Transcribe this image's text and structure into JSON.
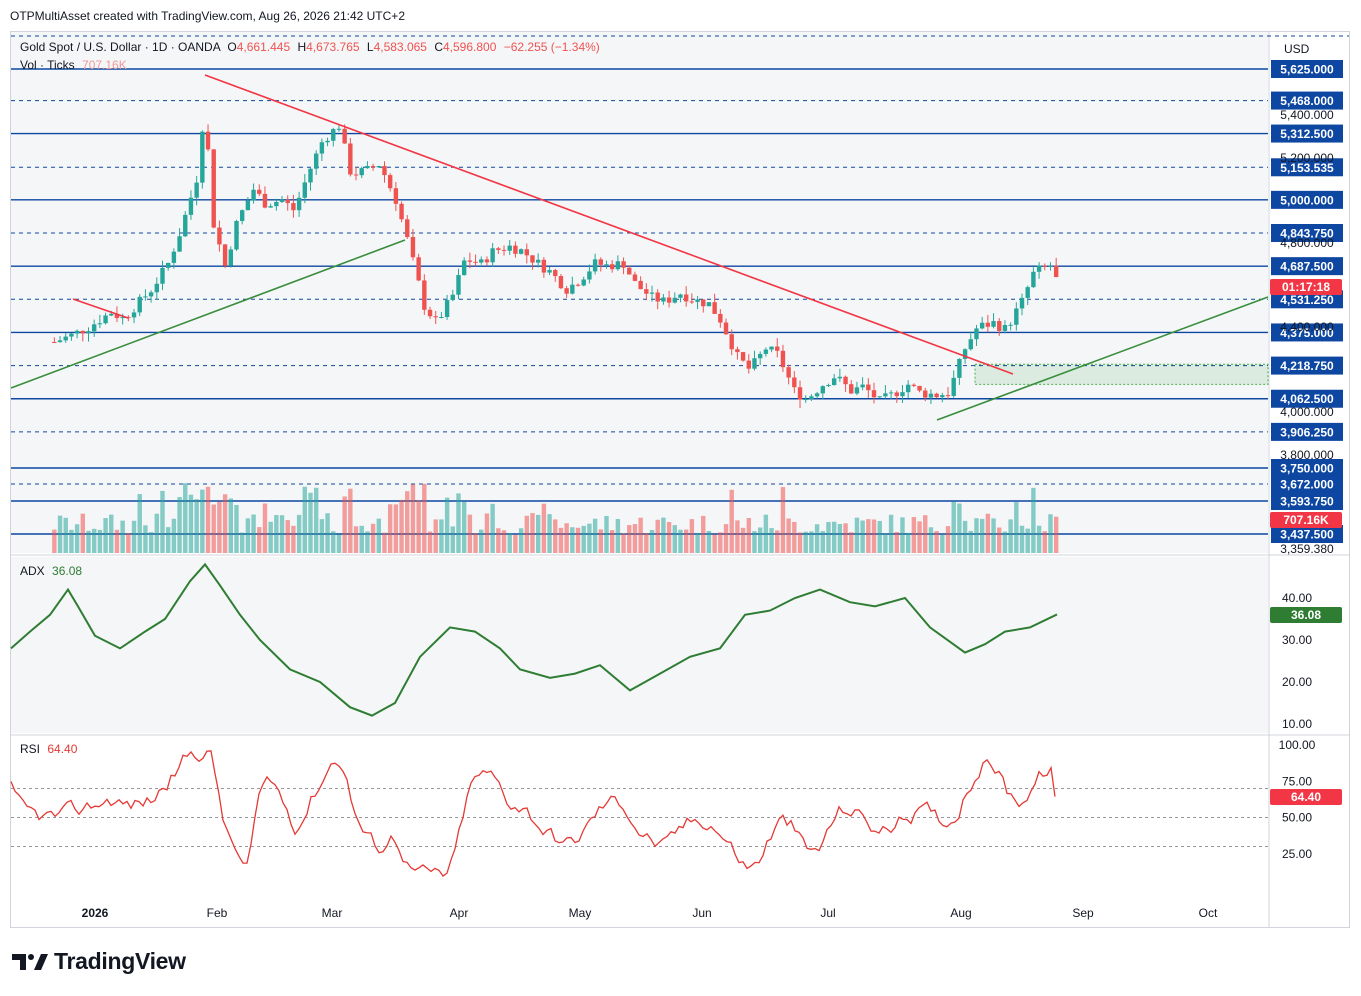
{
  "header": {
    "text": "OTPMultiAsset created with TradingView.com, Aug 26, 2026 21:42 UTC+2"
  },
  "price_pane": {
    "symbol": "Gold Spot / U.S. Dollar · 1D · OANDA",
    "o_label": "O",
    "o_value": "4,661.445",
    "h_label": "H",
    "h_value": "4,673.765",
    "l_label": "L",
    "l_value": "4,583.065",
    "c_label": "C",
    "c_value": "4,596.800",
    "change": "−62.255 (−1.34%)",
    "vol_label": "Vol · Ticks",
    "vol_value": "707.16K",
    "currency": "USD",
    "price_tag": "01:17:18",
    "vol_tag": "707.16K"
  },
  "adx_pane": {
    "label": "ADX",
    "value": "36.08"
  },
  "rsi_pane": {
    "label": "RSI",
    "value": "64.40"
  },
  "branding": {
    "logo_text": "TradingView"
  },
  "colors": {
    "up": "#26a69a",
    "down": "#ef5350",
    "adx": "#2e7d32",
    "rsi": "#e53935",
    "level": "#0d47a1",
    "trend_down": "#f23645",
    "trend_up": "#388e3c"
  },
  "chart_data": [
    {
      "type": "candlestick",
      "title": "Gold Spot / U.S. Dollar · 1D · OANDA",
      "x_ticks": [
        "2026",
        "Feb",
        "Mar",
        "Apr",
        "May",
        "Jun",
        "Jul",
        "Aug",
        "Sep",
        "Oct"
      ],
      "y_ticks": [
        "5,400.000",
        "5,200.000",
        "4,800.000",
        "4,400.000",
        "4,000.000",
        "3,800.000",
        "3,359.380"
      ],
      "horizontal_levels": [
        {
          "label": "5,625.000",
          "style": "solid"
        },
        {
          "label": "5,468.000",
          "style": "dashed"
        },
        {
          "label": "5,312.500",
          "style": "solid"
        },
        {
          "label": "5,153.535",
          "style": "dashed"
        },
        {
          "label": "5,000.000",
          "style": "solid"
        },
        {
          "label": "4,843.750",
          "style": "dashed"
        },
        {
          "label": "4,687.500",
          "style": "solid"
        },
        {
          "label": "4,531.250",
          "style": "dashed"
        },
        {
          "label": "4,375.000",
          "style": "solid"
        },
        {
          "label": "4,218.750",
          "style": "dashed"
        },
        {
          "label": "4,062.500",
          "style": "solid"
        },
        {
          "label": "3,906.250",
          "style": "dashed"
        },
        {
          "label": "3,750.000",
          "style": "solid"
        },
        {
          "label": "3,672.000",
          "style": "dashed"
        },
        {
          "label": "3,593.750",
          "style": "solid"
        },
        {
          "label": "3,437.500",
          "style": "solid"
        }
      ],
      "ylim": [
        3359.38,
        5700
      ],
      "close_series": [
        {
          "date": "2025-12-22",
          "close": 4330
        },
        {
          "date": "2025-12-26",
          "close": 4360
        },
        {
          "date": "2025-12-30",
          "close": 4395
        },
        {
          "date": "2026-01-05",
          "close": 4470
        },
        {
          "date": "2026-01-08",
          "close": 4440
        },
        {
          "date": "2026-01-12",
          "close": 4520
        },
        {
          "date": "2026-01-15",
          "close": 4580
        },
        {
          "date": "2026-01-19",
          "close": 4700
        },
        {
          "date": "2026-01-22",
          "close": 4850
        },
        {
          "date": "2026-01-26",
          "close": 5100
        },
        {
          "date": "2026-01-28",
          "close": 5450
        },
        {
          "date": "2026-01-30",
          "close": 4900
        },
        {
          "date": "2026-02-02",
          "close": 4690
        },
        {
          "date": "2026-02-05",
          "close": 4900
        },
        {
          "date": "2026-02-09",
          "close": 5050
        },
        {
          "date": "2026-02-12",
          "close": 4980
        },
        {
          "date": "2026-02-16",
          "close": 5000
        },
        {
          "date": "2026-02-19",
          "close": 4950
        },
        {
          "date": "2026-02-23",
          "close": 5150
        },
        {
          "date": "2026-02-26",
          "close": 5280
        },
        {
          "date": "2026-03-02",
          "close": 5350
        },
        {
          "date": "2026-03-05",
          "close": 5120
        },
        {
          "date": "2026-03-09",
          "close": 5140
        },
        {
          "date": "2026-03-12",
          "close": 5170
        },
        {
          "date": "2026-03-16",
          "close": 5000
        },
        {
          "date": "2026-03-19",
          "close": 4800
        },
        {
          "date": "2026-03-23",
          "close": 4500
        },
        {
          "date": "2026-03-26",
          "close": 4420
        },
        {
          "date": "2026-03-30",
          "close": 4550
        },
        {
          "date": "2026-04-02",
          "close": 4720
        },
        {
          "date": "2026-04-06",
          "close": 4700
        },
        {
          "date": "2026-04-09",
          "close": 4760
        },
        {
          "date": "2026-04-13",
          "close": 4780
        },
        {
          "date": "2026-04-16",
          "close": 4760
        },
        {
          "date": "2026-04-20",
          "close": 4700
        },
        {
          "date": "2026-04-23",
          "close": 4660
        },
        {
          "date": "2026-04-27",
          "close": 4580
        },
        {
          "date": "2026-04-30",
          "close": 4620
        },
        {
          "date": "2026-05-04",
          "close": 4700
        },
        {
          "date": "2026-05-07",
          "close": 4690
        },
        {
          "date": "2026-05-11",
          "close": 4700
        },
        {
          "date": "2026-05-14",
          "close": 4600
        },
        {
          "date": "2026-05-18",
          "close": 4540
        },
        {
          "date": "2026-05-21",
          "close": 4520
        },
        {
          "date": "2026-05-25",
          "close": 4560
        },
        {
          "date": "2026-05-28",
          "close": 4530
        },
        {
          "date": "2026-06-01",
          "close": 4510
        },
        {
          "date": "2026-06-04",
          "close": 4430
        },
        {
          "date": "2026-06-08",
          "close": 4260
        },
        {
          "date": "2026-06-11",
          "close": 4200
        },
        {
          "date": "2026-06-15",
          "close": 4300
        },
        {
          "date": "2026-06-18",
          "close": 4270
        },
        {
          "date": "2026-06-22",
          "close": 4100
        },
        {
          "date": "2026-06-25",
          "close": 4060
        },
        {
          "date": "2026-06-29",
          "close": 4130
        },
        {
          "date": "2026-07-02",
          "close": 4170
        },
        {
          "date": "2026-07-06",
          "close": 4100
        },
        {
          "date": "2026-07-09",
          "close": 4120
        },
        {
          "date": "2026-07-13",
          "close": 4050
        },
        {
          "date": "2026-07-16",
          "close": 4080
        },
        {
          "date": "2026-07-20",
          "close": 4130
        },
        {
          "date": "2026-07-23",
          "close": 4090
        },
        {
          "date": "2026-07-27",
          "close": 4080
        },
        {
          "date": "2026-07-30",
          "close": 4090
        },
        {
          "date": "2026-08-03",
          "close": 4300
        },
        {
          "date": "2026-08-06",
          "close": 4400
        },
        {
          "date": "2026-08-10",
          "close": 4420
        },
        {
          "date": "2026-08-13",
          "close": 4390
        },
        {
          "date": "2026-08-17",
          "close": 4520
        },
        {
          "date": "2026-08-20",
          "close": 4660
        },
        {
          "date": "2026-08-24",
          "close": 4690
        },
        {
          "date": "2026-08-26",
          "close": 4596.8
        }
      ]
    },
    {
      "type": "line",
      "title": "ADX",
      "y_ticks": [
        "40.00",
        "30.00",
        "20.00",
        "10.00"
      ],
      "ylim": [
        9,
        50
      ],
      "current": 36.08
    },
    {
      "type": "line",
      "title": "RSI",
      "y_ticks": [
        "100.00",
        "75.00",
        "50.00",
        "25.00"
      ],
      "ylim": [
        0,
        100
      ],
      "bands": [
        30,
        50,
        70
      ],
      "current": 64.4
    }
  ]
}
